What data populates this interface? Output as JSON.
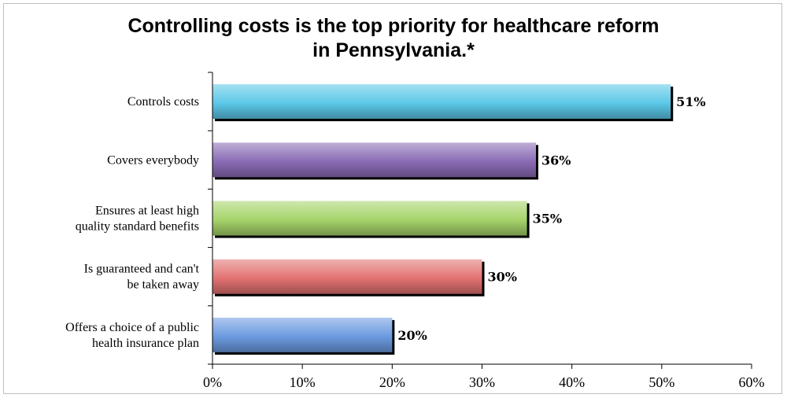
{
  "chart_data": {
    "type": "bar",
    "orientation": "horizontal",
    "title_lines": [
      "Controlling costs is the top priority for healthcare reform",
      "in Pennsylvania.*"
    ],
    "categories": [
      [
        "Controls costs"
      ],
      [
        "Covers everybody"
      ],
      [
        "Ensures at least high",
        "quality standard benefits"
      ],
      [
        "Is guaranteed and can't",
        "be taken away"
      ],
      [
        "Offers a choice of a public",
        "health insurance plan"
      ]
    ],
    "values": [
      51,
      36,
      35,
      30,
      20
    ],
    "value_labels": [
      "51%",
      "36%",
      "35%",
      "30%",
      "20%"
    ],
    "colors": [
      "#5bc8e8",
      "#8a6bb5",
      "#a6d46a",
      "#e27271",
      "#6b9ae0"
    ],
    "xlim": [
      0,
      60
    ],
    "xticks": [
      0,
      10,
      20,
      30,
      40,
      50,
      60
    ],
    "xtick_labels": [
      "0%",
      "10%",
      "20%",
      "30%",
      "40%",
      "50%",
      "60%"
    ],
    "grid": false,
    "legend": "none"
  }
}
